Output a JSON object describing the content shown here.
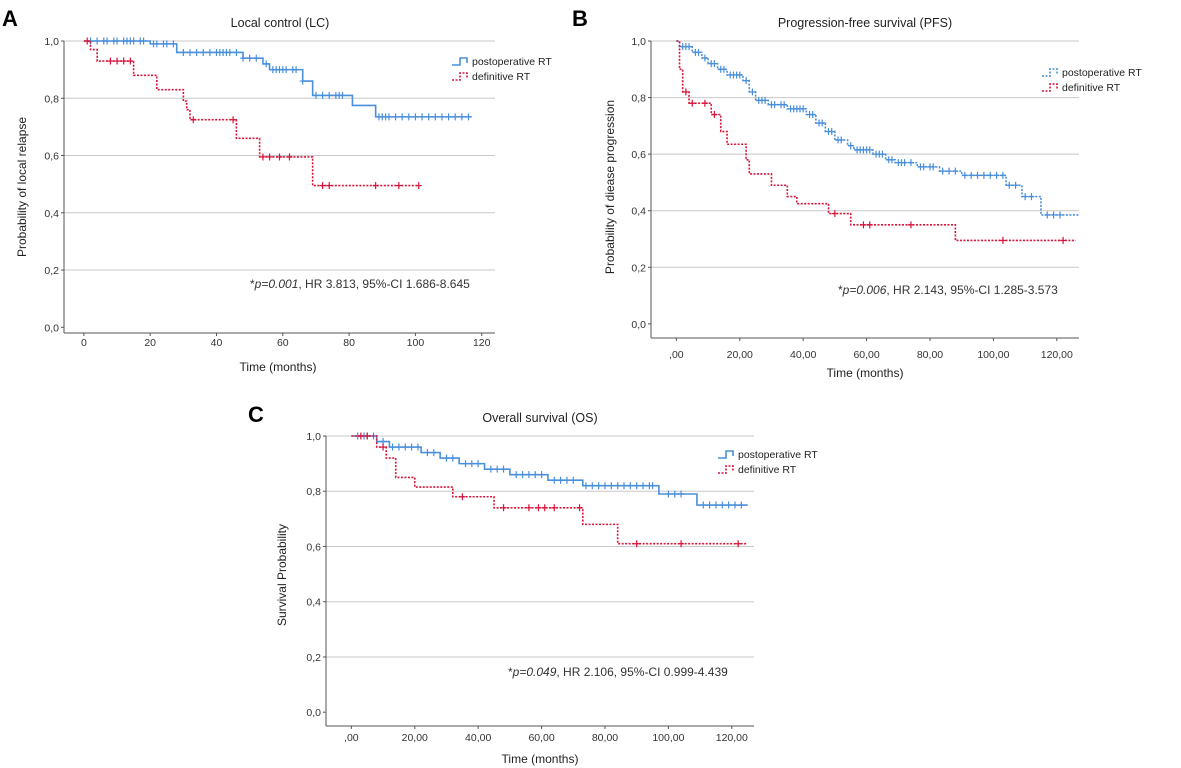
{
  "colors": {
    "postoperative": "#4a8fdc",
    "definitive": "#d9143a",
    "grid": "#c8c8c8",
    "axis": "#555555"
  },
  "chart_data": [
    {
      "id": "A",
      "panel_letter": "A",
      "type": "line",
      "title": "Local control (LC)",
      "xlabel": "Time (months)",
      "ylabel": "Probability of local relapse",
      "xlim": [
        -6,
        124
      ],
      "ylim": [
        -0.02,
        1.0
      ],
      "xticks": [
        0,
        20,
        40,
        60,
        80,
        100,
        120
      ],
      "xtick_labels": [
        "0",
        "20",
        "40",
        "60",
        "80",
        "100",
        "120"
      ],
      "yticks": [
        0,
        0.2,
        0.4,
        0.6,
        0.8,
        1.0
      ],
      "ytick_labels": [
        "0,0",
        "0,2",
        "0,4",
        "0,6",
        "0,8",
        "1,0"
      ],
      "grid": true,
      "legend_position": "top-right",
      "annotation": {
        "prefix": "*",
        "p_text": "p=0.001",
        "rest": ", HR 3.813, 95%-CI 1.686-8.645"
      },
      "series": [
        {
          "name": "postoperative RT",
          "style": "solid",
          "steps": [
            [
              0,
              1.0
            ],
            [
              20,
              0.99
            ],
            [
              28,
              0.96
            ],
            [
              48,
              0.94
            ],
            [
              54,
              0.92
            ],
            [
              56,
              0.9
            ],
            [
              66,
              0.86
            ],
            [
              69,
              0.81
            ],
            [
              81,
              0.775
            ],
            [
              88,
              0.735
            ],
            [
              117,
              0.735
            ]
          ],
          "censored": [
            2,
            4,
            6,
            7,
            9,
            10,
            12,
            13,
            14,
            15,
            17,
            18,
            21,
            22,
            24,
            25,
            27,
            30,
            32,
            34,
            36,
            38,
            40,
            41,
            42,
            43,
            44,
            46,
            48,
            50,
            52,
            55,
            57,
            58,
            59,
            60,
            61,
            63,
            64,
            66,
            70,
            72,
            74,
            76,
            77,
            78,
            89,
            90,
            91,
            92,
            94,
            96,
            98,
            100,
            102,
            104,
            106,
            108,
            110,
            112,
            114,
            116
          ]
        },
        {
          "name": "definitive RT",
          "style": "dotted",
          "steps": [
            [
              0,
              1.0
            ],
            [
              2,
              0.97
            ],
            [
              4,
              0.93
            ],
            [
              15,
              0.88
            ],
            [
              22,
              0.83
            ],
            [
              30,
              0.79
            ],
            [
              31,
              0.76
            ],
            [
              32,
              0.725
            ],
            [
              46,
              0.66
            ],
            [
              53,
              0.595
            ],
            [
              69,
              0.495
            ],
            [
              101,
              0.495
            ]
          ],
          "censored": [
            1,
            8,
            10,
            12,
            14,
            33,
            45,
            54,
            56,
            59,
            62,
            72,
            74,
            88,
            95,
            101
          ]
        }
      ]
    },
    {
      "id": "B",
      "panel_letter": "B",
      "type": "line",
      "title": "Progression-free survival (PFS)",
      "xlabel": "Time (months)",
      "ylabel": "Probability of diease progression",
      "xlim": [
        -8,
        127
      ],
      "ylim": [
        -0.05,
        1.0
      ],
      "xticks": [
        0,
        20,
        40,
        60,
        80,
        100,
        120
      ],
      "xtick_labels": [
        ",00",
        "20,00",
        "40,00",
        "60,00",
        "80,00",
        "100,00",
        "120,00"
      ],
      "yticks": [
        0,
        0.2,
        0.4,
        0.6,
        0.8,
        1.0
      ],
      "ytick_labels": [
        "0,0",
        "0,2",
        "0,4",
        "0,6",
        "0,8",
        "1,0"
      ],
      "grid": true,
      "legend_position": "top-right",
      "annotation": {
        "prefix": "*",
        "p_text": "p=0.006",
        "rest": ", HR 2.143, 95%-CI 1.285-3.573"
      },
      "series": [
        {
          "name": "postoperative RT",
          "style": "dotted",
          "steps": [
            [
              0,
              1.0
            ],
            [
              1,
              0.98
            ],
            [
              5,
              0.96
            ],
            [
              8,
              0.94
            ],
            [
              10,
              0.92
            ],
            [
              13,
              0.9
            ],
            [
              16,
              0.88
            ],
            [
              21,
              0.86
            ],
            [
              23,
              0.82
            ],
            [
              25,
              0.79
            ],
            [
              29,
              0.775
            ],
            [
              35,
              0.76
            ],
            [
              41,
              0.74
            ],
            [
              44,
              0.71
            ],
            [
              47,
              0.68
            ],
            [
              50,
              0.65
            ],
            [
              54,
              0.63
            ],
            [
              56,
              0.615
            ],
            [
              62,
              0.6
            ],
            [
              66,
              0.58
            ],
            [
              69,
              0.57
            ],
            [
              76,
              0.555
            ],
            [
              83,
              0.54
            ],
            [
              90,
              0.525
            ],
            [
              104,
              0.49
            ],
            [
              109,
              0.45
            ],
            [
              115,
              0.385
            ],
            [
              127,
              0.385
            ]
          ],
          "censored": [
            2,
            3,
            4,
            6,
            7,
            9,
            11,
            12,
            14,
            15,
            17,
            18,
            19,
            20,
            22,
            24,
            26,
            27,
            28,
            30,
            31,
            33,
            34,
            36,
            37,
            38,
            39,
            40,
            42,
            43,
            45,
            46,
            48,
            49,
            51,
            52,
            55,
            57,
            58,
            59,
            60,
            61,
            63,
            64,
            65,
            67,
            68,
            70,
            71,
            72,
            74,
            77,
            78,
            80,
            81,
            84,
            86,
            88,
            91,
            93,
            95,
            97,
            99,
            101,
            103,
            105,
            107,
            110,
            112,
            117,
            119,
            121
          ]
        },
        {
          "name": "definitive RT",
          "style": "dotted",
          "steps": [
            [
              0,
              1.0
            ],
            [
              1,
              0.9
            ],
            [
              2,
              0.82
            ],
            [
              4,
              0.78
            ],
            [
              11,
              0.74
            ],
            [
              14,
              0.68
            ],
            [
              16,
              0.635
            ],
            [
              22,
              0.58
            ],
            [
              23,
              0.53
            ],
            [
              30,
              0.49
            ],
            [
              35,
              0.45
            ],
            [
              38,
              0.425
            ],
            [
              48,
              0.39
            ],
            [
              55,
              0.35
            ],
            [
              88,
              0.295
            ],
            [
              126,
              0.295
            ]
          ],
          "censored": [
            3,
            5,
            9,
            12,
            50,
            59,
            61,
            74,
            103,
            122
          ]
        }
      ]
    },
    {
      "id": "C",
      "panel_letter": "C",
      "type": "line",
      "title": "Overall survival (OS)",
      "xlabel": "Time (months)",
      "ylabel": "Survival Probability",
      "xlim": [
        -8,
        127
      ],
      "ylim": [
        -0.05,
        1.0
      ],
      "xticks": [
        0,
        20,
        40,
        60,
        80,
        100,
        120
      ],
      "xtick_labels": [
        ",00",
        "20,00",
        "40,00",
        "60,00",
        "80,00",
        "100,00",
        "120,00"
      ],
      "yticks": [
        0,
        0.2,
        0.4,
        0.6,
        0.8,
        1.0
      ],
      "ytick_labels": [
        "0,0",
        "0,2",
        "0,4",
        "0,6",
        "0,8",
        "1,0"
      ],
      "grid": true,
      "legend_position": "top-right",
      "annotation": {
        "prefix": "*",
        "p_text": "p=0.049",
        "rest": ", HR 2.106, 95%-CI 0.999-4.439"
      },
      "series": [
        {
          "name": "postoperative RT",
          "style": "solid",
          "steps": [
            [
              0,
              1.0
            ],
            [
              8,
              0.98
            ],
            [
              12,
              0.96
            ],
            [
              22,
              0.94
            ],
            [
              28,
              0.92
            ],
            [
              34,
              0.9
            ],
            [
              42,
              0.88
            ],
            [
              50,
              0.86
            ],
            [
              62,
              0.84
            ],
            [
              73,
              0.82
            ],
            [
              97,
              0.79
            ],
            [
              109,
              0.75
            ],
            [
              125,
              0.75
            ]
          ],
          "censored": [
            2,
            4,
            5,
            7,
            10,
            13,
            15,
            17,
            19,
            21,
            24,
            26,
            30,
            32,
            36,
            38,
            40,
            44,
            46,
            48,
            52,
            54,
            56,
            58,
            60,
            64,
            66,
            68,
            70,
            74,
            76,
            78,
            80,
            82,
            84,
            86,
            88,
            90,
            92,
            94,
            95,
            100,
            102,
            104,
            111,
            113,
            115,
            117,
            119,
            121,
            123
          ]
        },
        {
          "name": "definitive RT",
          "style": "dotted",
          "steps": [
            [
              0,
              1.0
            ],
            [
              8,
              0.96
            ],
            [
              11,
              0.92
            ],
            [
              14,
              0.85
            ],
            [
              20,
              0.815
            ],
            [
              32,
              0.78
            ],
            [
              45,
              0.74
            ],
            [
              73,
              0.68
            ],
            [
              84,
              0.61
            ],
            [
              125,
              0.61
            ]
          ],
          "censored": [
            3,
            5,
            10,
            35,
            48,
            56,
            59,
            61,
            64,
            72,
            90,
            104,
            122
          ]
        }
      ]
    }
  ]
}
